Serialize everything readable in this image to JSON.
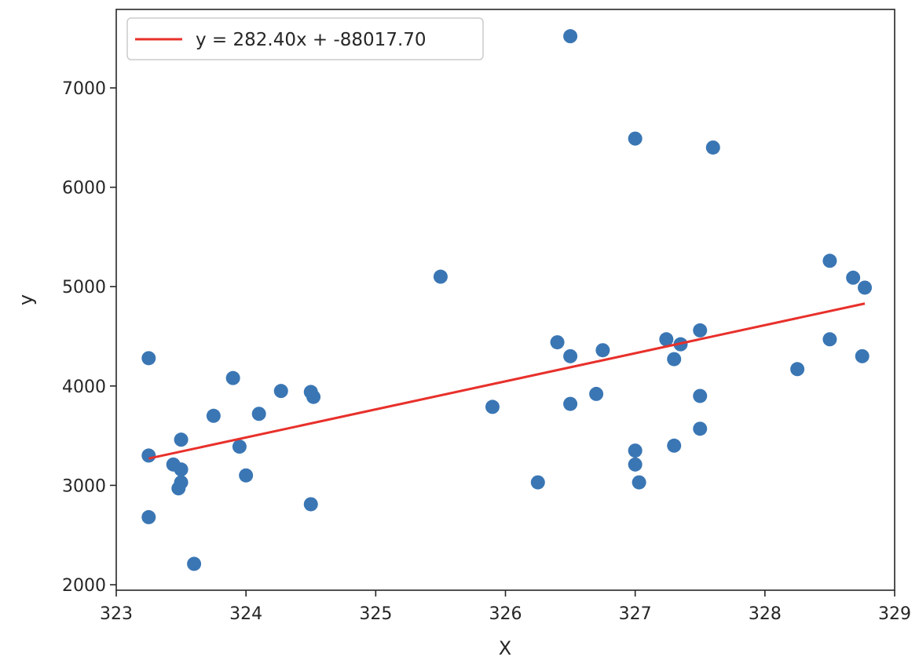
{
  "chart_data": {
    "type": "scatter",
    "title": "",
    "xlabel": "X",
    "ylabel": "y",
    "xlim": [
      323,
      329
    ],
    "ylim": [
      2000,
      7500
    ],
    "x_ticks": [
      323,
      324,
      325,
      326,
      327,
      328,
      329
    ],
    "y_ticks": [
      2000,
      3000,
      4000,
      5000,
      6000,
      7000
    ],
    "grid": false,
    "legend_position": "top-left",
    "point_color": "#3a76b4",
    "line_color": "#e8302b",
    "points": [
      {
        "x": 323.25,
        "y": 4280
      },
      {
        "x": 323.25,
        "y": 3300
      },
      {
        "x": 323.25,
        "y": 2680
      },
      {
        "x": 323.44,
        "y": 3210
      },
      {
        "x": 323.48,
        "y": 2970
      },
      {
        "x": 323.5,
        "y": 3460
      },
      {
        "x": 323.5,
        "y": 3160
      },
      {
        "x": 323.5,
        "y": 3030
      },
      {
        "x": 323.6,
        "y": 2210
      },
      {
        "x": 323.75,
        "y": 3700
      },
      {
        "x": 323.9,
        "y": 4080
      },
      {
        "x": 323.95,
        "y": 3390
      },
      {
        "x": 324.0,
        "y": 3100
      },
      {
        "x": 324.1,
        "y": 3720
      },
      {
        "x": 324.27,
        "y": 3950
      },
      {
        "x": 324.5,
        "y": 3940
      },
      {
        "x": 324.52,
        "y": 3890
      },
      {
        "x": 324.5,
        "y": 2810
      },
      {
        "x": 325.5,
        "y": 5100
      },
      {
        "x": 325.9,
        "y": 3790
      },
      {
        "x": 326.25,
        "y": 3030
      },
      {
        "x": 326.4,
        "y": 4440
      },
      {
        "x": 326.5,
        "y": 7520
      },
      {
        "x": 326.5,
        "y": 4300
      },
      {
        "x": 326.5,
        "y": 3820
      },
      {
        "x": 326.7,
        "y": 3920
      },
      {
        "x": 326.75,
        "y": 4360
      },
      {
        "x": 327.0,
        "y": 6490
      },
      {
        "x": 327.0,
        "y": 3350
      },
      {
        "x": 327.0,
        "y": 3210
      },
      {
        "x": 327.03,
        "y": 3030
      },
      {
        "x": 327.24,
        "y": 4470
      },
      {
        "x": 327.3,
        "y": 4270
      },
      {
        "x": 327.35,
        "y": 4420
      },
      {
        "x": 327.3,
        "y": 3400
      },
      {
        "x": 327.5,
        "y": 4560
      },
      {
        "x": 327.5,
        "y": 3900
      },
      {
        "x": 327.5,
        "y": 3570
      },
      {
        "x": 327.6,
        "y": 6400
      },
      {
        "x": 328.25,
        "y": 4170
      },
      {
        "x": 328.5,
        "y": 5260
      },
      {
        "x": 328.5,
        "y": 4470
      },
      {
        "x": 328.68,
        "y": 5090
      },
      {
        "x": 328.75,
        "y": 4300
      },
      {
        "x": 328.77,
        "y": 4990
      }
    ],
    "fit_line": {
      "x": [
        323.25,
        328.77
      ],
      "y": [
        3270,
        4830
      ]
    },
    "legend": [
      {
        "label": "y = 282.40x + -88017.70"
      }
    ]
  }
}
